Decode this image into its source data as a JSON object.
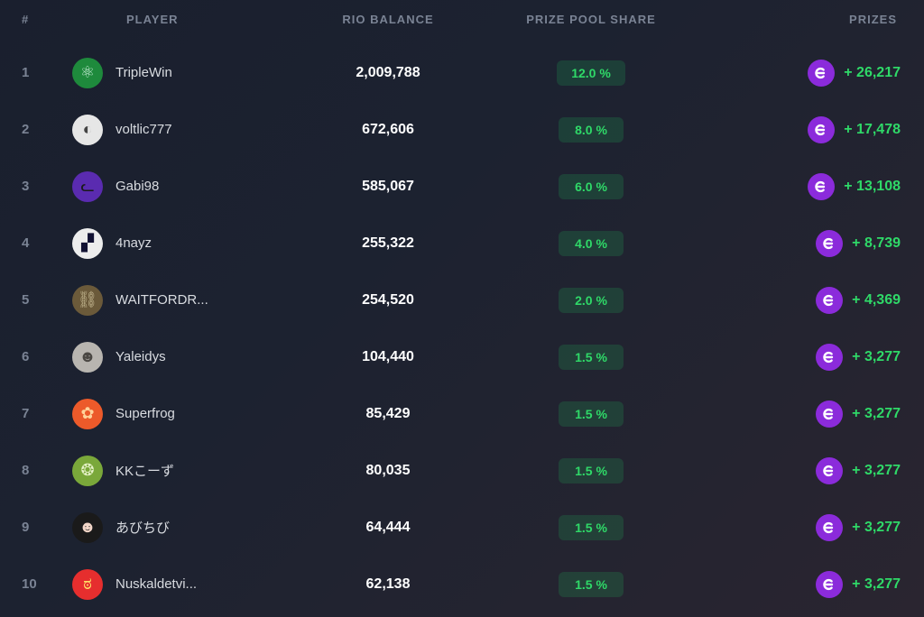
{
  "columns": {
    "rank": "#",
    "player": "PLAYER",
    "balance": "RIO BALANCE",
    "share": "PRIZE POOL SHARE",
    "prizes": "PRIZES"
  },
  "colors": {
    "background_gradient_start": "#1a1f2e",
    "background_gradient_end": "#2a2530",
    "header_text": "#7a8394",
    "rank_text": "#7a8394",
    "player_name": "#d8dbe0",
    "balance_text": "#ffffff",
    "share_badge_bg": "rgba(34,197,94,0.18)",
    "share_badge_text": "#2fd968",
    "prize_text": "#2fd968",
    "coin_bg": "#8b2bdb",
    "coin_fg": "#ffffff"
  },
  "rows": [
    {
      "rank": "1",
      "name": "TripleWin",
      "avatar_bg": "#1e8a3c",
      "avatar_glyph": "⚛",
      "avatar_glyph_color": "#bfe8cf",
      "balance": "2,009,788",
      "share": "12.0 %",
      "prize": "+ 26,217"
    },
    {
      "rank": "2",
      "name": "voltlic777",
      "avatar_bg": "#e6e6e6",
      "avatar_glyph": "◐",
      "avatar_glyph_color": "#444444",
      "balance": "672,606",
      "share": "8.0 %",
      "prize": "+ 17,478"
    },
    {
      "rank": "3",
      "name": "Gabi98",
      "avatar_bg": "#5a2bb0",
      "avatar_glyph": "ᓚ",
      "avatar_glyph_color": "#1a1a1a",
      "balance": "585,067",
      "share": "6.0 %",
      "prize": "+ 13,108"
    },
    {
      "rank": "4",
      "name": "4nayz",
      "avatar_bg": "#ededed",
      "avatar_glyph": "▞",
      "avatar_glyph_color": "#121233",
      "balance": "255,322",
      "share": "4.0 %",
      "prize": "+ 8,739"
    },
    {
      "rank": "5",
      "name": "WAITFORDR...",
      "avatar_bg": "#6b5a3a",
      "avatar_glyph": "⛓",
      "avatar_glyph_color": "#c2b58f",
      "balance": "254,520",
      "share": "2.0 %",
      "prize": "+ 4,369"
    },
    {
      "rank": "6",
      "name": "Yaleidys",
      "avatar_bg": "#b8b5b0",
      "avatar_glyph": "☻",
      "avatar_glyph_color": "#4a4743",
      "balance": "104,440",
      "share": "1.5 %",
      "prize": "+ 3,277"
    },
    {
      "rank": "7",
      "name": "Superfrog",
      "avatar_bg": "#ec5a2a",
      "avatar_glyph": "✿",
      "avatar_glyph_color": "#ffd39a",
      "balance": "85,429",
      "share": "1.5 %",
      "prize": "+ 3,277"
    },
    {
      "rank": "8",
      "name": "KKこーず",
      "avatar_bg": "#7aa83a",
      "avatar_glyph": "❂",
      "avatar_glyph_color": "#e6f2c8",
      "balance": "80,035",
      "share": "1.5 %",
      "prize": "+ 3,277"
    },
    {
      "rank": "9",
      "name": "あびちび",
      "avatar_bg": "#1a1a1a",
      "avatar_glyph": "☻",
      "avatar_glyph_color": "#f2d6c8",
      "balance": "64,444",
      "share": "1.5 %",
      "prize": "+ 3,277"
    },
    {
      "rank": "10",
      "name": "Nuskaldetvi...",
      "avatar_bg": "#e62e2e",
      "avatar_glyph": "ಠ",
      "avatar_glyph_color": "#ffe066",
      "balance": "62,138",
      "share": "1.5 %",
      "prize": "+ 3,277"
    }
  ]
}
